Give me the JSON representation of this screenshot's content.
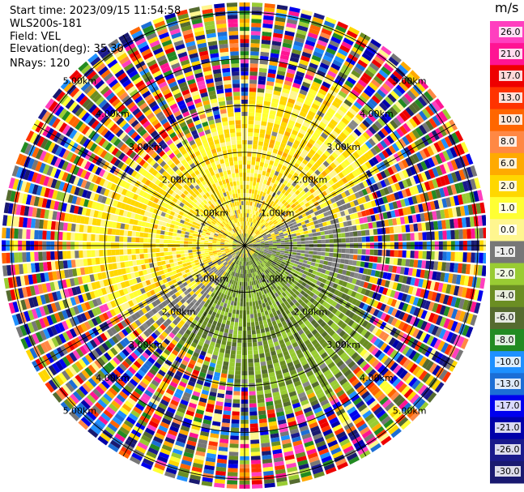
{
  "header": {
    "start_time": "Start time: 2023/09/15 11:54:58",
    "site": "WLS200s-181",
    "field": "Field: VEL",
    "elevation": "Elevation(deg): 35.30",
    "nrays": "NRays: 120"
  },
  "chart_data": {
    "type": "ppi",
    "field": "VEL",
    "units": "m/s",
    "nrays": 120,
    "range_rings_km": [
      1.0,
      2.0,
      3.0,
      4.0,
      5.0
    ],
    "ring_labels": [
      "1.00km",
      "2.00km",
      "3.00km",
      "4.00km",
      "5.00km"
    ],
    "colorbar": {
      "unit_label": "m/s",
      "levels": [
        26.0,
        21.0,
        17.0,
        13.0,
        10.0,
        8.0,
        6.0,
        2.0,
        1.0,
        0.0,
        -1.0,
        -2.0,
        -4.0,
        -6.0,
        -8.0,
        -10.0,
        -13.0,
        -17.0,
        -21.0,
        -26.0,
        -30.0
      ],
      "level_labels": [
        "26.0",
        "21.0",
        "17.0",
        "13.0",
        "10.0",
        "8.0",
        "6.0",
        "2.0",
        "1.0",
        "0.0",
        "-1.0",
        "-2.0",
        "-4.0",
        "-6.0",
        "-8.0",
        "-10.0",
        "-13.0",
        "-17.0",
        "-21.0",
        "-26.0",
        "-30.0"
      ],
      "colors": [
        "#ff3fbf",
        "#ff1493",
        "#ee0000",
        "#ff3300",
        "#ff6600",
        "#ff8844",
        "#ffaa00",
        "#ffd700",
        "#ffff33",
        "#fff68f",
        "#777777",
        "#99cc33",
        "#6b8e23",
        "#556b2f",
        "#228b22",
        "#1e90ff",
        "#1c6ed6",
        "#0000ee",
        "#0000aa",
        "#1a1a8c",
        "#191970"
      ]
    }
  }
}
